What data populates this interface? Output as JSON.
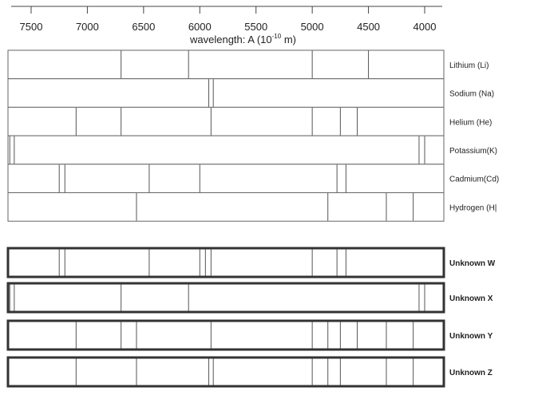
{
  "axis": {
    "ticks": [
      "7500",
      "7000",
      "6500",
      "6000",
      "5500",
      "5000",
      "4500",
      "4000"
    ],
    "tick_values": [
      7500,
      7000,
      6500,
      6000,
      5500,
      5000,
      4500,
      4000
    ],
    "label_main": "wavelength:   A (10",
    "label_sup": "-10",
    "label_end": " m)"
  },
  "reference_spectra": [
    {
      "label": "Lithium (Li)",
      "lines": [
        6700,
        6100,
        5000,
        4500
      ]
    },
    {
      "label": "Sodium (Na)",
      "lines": [
        5920,
        5880
      ]
    },
    {
      "label": "Helium (He)",
      "lines": [
        7100,
        6700,
        5900,
        5000,
        4750,
        4600
      ]
    },
    {
      "label": "Potassium(K)",
      "lines": [
        7690,
        7650,
        4050,
        4000
      ]
    },
    {
      "label": "Cadmium(Cd)",
      "lines": [
        7250,
        7200,
        6450,
        6000,
        4780,
        4700
      ]
    },
    {
      "label": "Hydrogen (H|",
      "lines": [
        6563,
        4861,
        4341,
        4102
      ]
    }
  ],
  "unknown_spectra": [
    {
      "label": "Unknown W",
      "lines": [
        7250,
        7200,
        6450,
        6000,
        5950,
        5900,
        5000,
        4780,
        4700
      ]
    },
    {
      "label": "Unknown X",
      "lines": [
        7690,
        7650,
        6700,
        6100,
        4050,
        4000
      ]
    },
    {
      "label": "Unknown Y",
      "lines": [
        7100,
        6700,
        6563,
        5900,
        5000,
        4861,
        4750,
        4600,
        4341,
        4102
      ]
    },
    {
      "label": "Unknown Z",
      "lines": [
        7100,
        6563,
        5920,
        5880,
        5000,
        4861,
        4750,
        4341,
        4102
      ]
    }
  ]
}
